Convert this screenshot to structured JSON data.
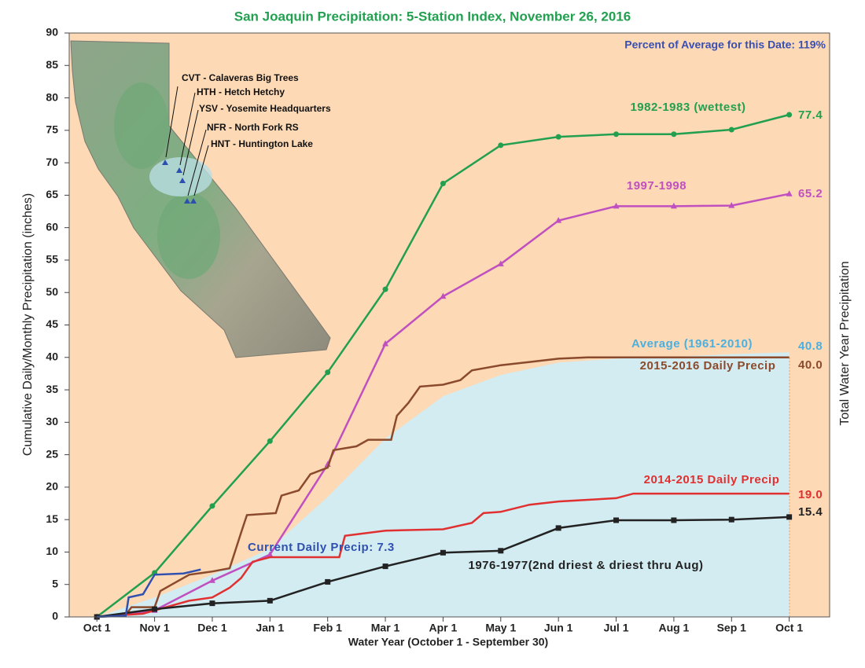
{
  "chart_data": {
    "type": "line",
    "title": "San Joaquin Precipitation: 5-Station Index, November 26, 2016",
    "subtitle": "Percent of Average for this Date: 119%",
    "x_label": "Water Year (October 1 - September 30)",
    "y_label": "Cumulative Daily/Monthly Precipitation (inches)",
    "y2_label": "Total Water Year Precipitation",
    "xlim": [
      -0.48,
      12.7
    ],
    "xticks": [
      {
        "value": 0,
        "label": "Oct 1"
      },
      {
        "value": 1,
        "label": "Nov 1"
      },
      {
        "value": 2,
        "label": "Dec 1"
      },
      {
        "value": 3,
        "label": "Jan 1"
      },
      {
        "value": 4,
        "label": "Feb 1"
      },
      {
        "value": 5,
        "label": "Mar 1"
      },
      {
        "value": 6,
        "label": "Apr 1"
      },
      {
        "value": 7,
        "label": "May 1"
      },
      {
        "value": 8,
        "label": "Jun 1"
      },
      {
        "value": 9,
        "label": "Jul 1"
      },
      {
        "value": 10,
        "label": "Aug 1"
      },
      {
        "value": 11,
        "label": "Sep 1"
      },
      {
        "value": 12,
        "label": "Oct 1"
      }
    ],
    "ylim": [
      0,
      90
    ],
    "yticks": [
      0,
      5,
      10,
      15,
      20,
      25,
      30,
      35,
      40,
      45,
      50,
      55,
      60,
      65,
      70,
      75,
      80,
      85,
      90
    ],
    "grid": false,
    "background": "#fdd9b5",
    "series": [
      {
        "name": "Average (1961-2010)",
        "color": "#4ab0e0",
        "fill": "#d3ecf2",
        "marker": null,
        "end_label": "40.8",
        "x": [
          0,
          1,
          2,
          3,
          4,
          5,
          6,
          7,
          8,
          9,
          10,
          11,
          12
        ],
        "values": [
          0,
          3,
          6.5,
          10.5,
          18.5,
          27.5,
          34,
          37.3,
          39.2,
          39.8,
          40.1,
          40.5,
          40.8
        ]
      },
      {
        "name": "1982-1983 (wettest)",
        "color": "#22a050",
        "marker": "circle",
        "end_label": "77.4",
        "x": [
          0,
          1,
          2,
          3,
          4,
          5,
          6,
          7,
          8,
          9,
          10,
          11,
          12
        ],
        "values": [
          0,
          6.8,
          17.1,
          27.1,
          37.7,
          50.5,
          66.8,
          72.7,
          74.0,
          74.4,
          74.4,
          75.1,
          77.4
        ]
      },
      {
        "name": "1997-1998",
        "color": "#c050c0",
        "marker": "triangle",
        "end_label": "65.2",
        "x": [
          0,
          1,
          2,
          3,
          4,
          5,
          6,
          7,
          8,
          9,
          10,
          11,
          12
        ],
        "values": [
          0,
          1,
          5.6,
          9.6,
          23.5,
          42.1,
          49.4,
          54.4,
          61.1,
          63.3,
          63.3,
          63.4,
          65.2
        ]
      },
      {
        "name": "2015-2016 Daily Precip",
        "color": "#8b4a2b",
        "marker": null,
        "end_label": "40.0",
        "x": [
          0,
          0.5,
          0.6,
          1,
          1.1,
          1.3,
          1.6,
          2,
          2.3,
          2.5,
          2.6,
          3.1,
          3.2,
          3.5,
          3.7,
          4,
          4.1,
          4.5,
          4.7,
          5.1,
          5.2,
          5.4,
          5.6,
          6,
          6.3,
          6.5,
          7,
          7.5,
          8,
          8.5,
          12
        ],
        "values": [
          0,
          0.3,
          1.5,
          1.5,
          4,
          5,
          6.5,
          7,
          7.5,
          13,
          15.7,
          16,
          18.7,
          19.5,
          22,
          23,
          25.7,
          26.3,
          27.3,
          27.3,
          31,
          33,
          35.5,
          35.8,
          36.5,
          38,
          38.8,
          39.3,
          39.8,
          40,
          40
        ]
      },
      {
        "name": "2014-2015 Daily Precip",
        "color": "#e03030",
        "marker": null,
        "end_label": "19.0",
        "x": [
          0,
          0.8,
          1.2,
          1.6,
          2,
          2.3,
          2.5,
          2.7,
          3,
          4.2,
          4.3,
          5,
          6,
          6.5,
          6.7,
          7,
          7.5,
          8,
          9,
          9.3,
          12
        ],
        "values": [
          0,
          0.5,
          1.5,
          2.5,
          3,
          4.5,
          6,
          8.5,
          9.2,
          9.2,
          12.5,
          13.3,
          13.5,
          14.5,
          16,
          16.2,
          17.3,
          17.8,
          18.3,
          19,
          19
        ]
      },
      {
        "name": "1976-1977(2nd driest & driest thru Aug)",
        "color": "#222222",
        "marker": "square",
        "end_label": "15.4",
        "x": [
          0,
          1,
          2,
          3,
          4,
          5,
          6,
          7,
          8,
          9,
          10,
          11,
          12
        ],
        "values": [
          0,
          1.2,
          2.1,
          2.5,
          5.4,
          7.8,
          9.9,
          10.2,
          13.7,
          14.9,
          14.9,
          15.0,
          15.4
        ]
      },
      {
        "name": "Current Daily Precip: 7.3",
        "color": "#3050b0",
        "marker": null,
        "end_label": null,
        "x": [
          0,
          0.5,
          0.55,
          0.8,
          1,
          1.5,
          1.8
        ],
        "values": [
          0,
          0.2,
          3,
          3.5,
          6.5,
          6.7,
          7.3
        ]
      }
    ],
    "map_labels": [
      "CVT - Calaveras Big Trees",
      "HTH - Hetch Hetchy",
      "YSV - Yosemite Headquarters",
      "NFR - North Fork RS",
      "HNT - Huntington Lake"
    ]
  }
}
